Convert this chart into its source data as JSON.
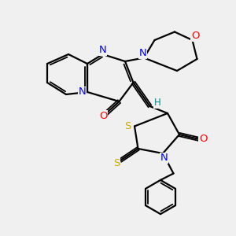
{
  "bg_color": "#f0f0f0",
  "atom_colors": {
    "N": "#0000ff",
    "O": "#ff0000",
    "S": "#ccaa00",
    "C": "#000000",
    "H": "#008b8b"
  },
  "bond_color": "#000000",
  "figsize": [
    3.0,
    3.0
  ],
  "dpi": 100,
  "xlim": [
    0,
    10
  ],
  "ylim": [
    0,
    10
  ]
}
